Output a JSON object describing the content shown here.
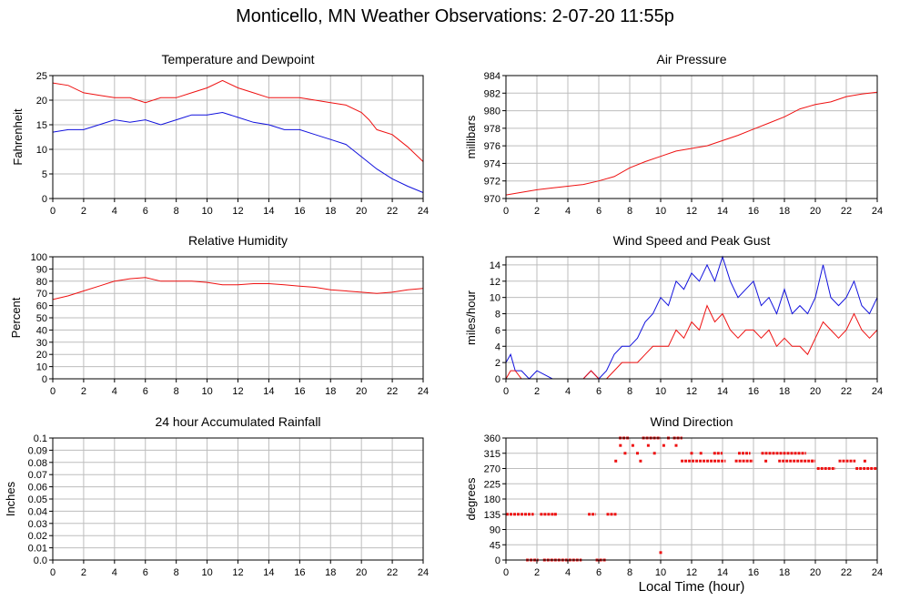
{
  "page": {
    "title": "Monticello, MN Weather Observations: 2-07-20 11:55p",
    "shared_xlabel": "Local Time (hour)"
  },
  "colors": {
    "red": "#ee1111",
    "blue": "#1111dd",
    "grid": "#bdbdbd",
    "axis": "#000000"
  },
  "chart_data": [
    {
      "id": "temp",
      "type": "line",
      "title": "Temperature and Dewpoint",
      "xlabel": "",
      "ylabel": "Fahrenheit",
      "xlim": [
        0,
        24
      ],
      "ylim": [
        0,
        25
      ],
      "xticks": [
        0,
        2,
        4,
        6,
        8,
        10,
        12,
        14,
        16,
        18,
        20,
        22,
        24
      ],
      "yticks": [
        0,
        5,
        10,
        15,
        20,
        25
      ],
      "ytick_labels": [
        "0",
        "5",
        "10",
        "15",
        "20",
        "25"
      ],
      "grid": true,
      "series": [
        {
          "color": "red",
          "x": [
            0,
            1,
            2,
            3,
            4,
            5,
            6,
            7,
            8,
            9,
            10,
            11,
            12,
            13,
            14,
            15,
            16,
            17,
            18,
            19,
            20,
            20.5,
            21,
            22,
            23,
            24
          ],
          "y": [
            23.5,
            23,
            21.5,
            21,
            20.5,
            20.5,
            19.5,
            20.5,
            20.5,
            21.5,
            22.5,
            24,
            22.5,
            21.5,
            20.5,
            20.5,
            20.5,
            20,
            19.5,
            19,
            17.5,
            16,
            14,
            13,
            10.5,
            7.5
          ]
        },
        {
          "color": "blue",
          "x": [
            0,
            1,
            2,
            3,
            4,
            5,
            6,
            7,
            8,
            9,
            10,
            11,
            12,
            13,
            14,
            15,
            16,
            17,
            18,
            19,
            20,
            21,
            22,
            23,
            24
          ],
          "y": [
            13.5,
            14,
            14,
            15,
            16,
            15.5,
            16,
            15,
            16,
            17,
            17,
            17.5,
            16.5,
            15.5,
            15,
            14,
            14,
            13,
            12,
            11,
            8.5,
            6,
            4,
            2.5,
            1.2
          ]
        }
      ]
    },
    {
      "id": "pressure",
      "type": "line",
      "title": "Air Pressure",
      "xlabel": "",
      "ylabel": "millibars",
      "xlim": [
        0,
        24
      ],
      "ylim": [
        970,
        984
      ],
      "xticks": [
        0,
        2,
        4,
        6,
        8,
        10,
        12,
        14,
        16,
        18,
        20,
        22,
        24
      ],
      "yticks": [
        970,
        972,
        974,
        976,
        978,
        980,
        982,
        984
      ],
      "ytick_labels": [
        "970",
        "972",
        "974",
        "976",
        "978",
        "980",
        "982",
        "984"
      ],
      "grid": true,
      "series": [
        {
          "color": "red",
          "x": [
            0,
            1,
            2,
            3,
            4,
            5,
            6,
            7,
            8,
            9,
            10,
            11,
            12,
            13,
            14,
            15,
            16,
            17,
            18,
            19,
            20,
            21,
            22,
            23,
            24
          ],
          "y": [
            970.4,
            970.7,
            971,
            971.2,
            971.4,
            971.6,
            972,
            972.5,
            973.5,
            974.2,
            974.8,
            975.4,
            975.7,
            976,
            976.6,
            977.2,
            977.9,
            978.6,
            979.3,
            980.2,
            980.7,
            981,
            981.6,
            981.9,
            982.1
          ]
        }
      ]
    },
    {
      "id": "rh",
      "type": "line",
      "title": "Relative Humidity",
      "xlabel": "",
      "ylabel": "Percent",
      "xlim": [
        0,
        24
      ],
      "ylim": [
        0,
        100
      ],
      "xticks": [
        0,
        2,
        4,
        6,
        8,
        10,
        12,
        14,
        16,
        18,
        20,
        22,
        24
      ],
      "yticks": [
        0,
        10,
        20,
        30,
        40,
        50,
        60,
        70,
        80,
        90,
        100
      ],
      "ytick_labels": [
        "0",
        "10",
        "20",
        "30",
        "40",
        "50",
        "60",
        "70",
        "80",
        "90",
        "100"
      ],
      "grid": true,
      "series": [
        {
          "color": "red",
          "x": [
            0,
            1,
            2,
            3,
            4,
            5,
            6,
            7,
            8,
            9,
            10,
            11,
            12,
            13,
            14,
            15,
            16,
            17,
            18,
            19,
            20,
            21,
            22,
            23,
            24
          ],
          "y": [
            65,
            68,
            72,
            76,
            80,
            82,
            83,
            80,
            80,
            80,
            79,
            77,
            77,
            78,
            78,
            77,
            76,
            75,
            73,
            72,
            71,
            70,
            71,
            73,
            74
          ]
        }
      ]
    },
    {
      "id": "wind",
      "type": "line",
      "title": "Wind Speed and Peak Gust",
      "xlabel": "",
      "ylabel": "miles/hour",
      "xlim": [
        0,
        24
      ],
      "ylim": [
        0,
        15
      ],
      "xticks": [
        0,
        2,
        4,
        6,
        8,
        10,
        12,
        14,
        16,
        18,
        20,
        22,
        24
      ],
      "yticks": [
        0,
        2,
        4,
        6,
        8,
        10,
        12,
        14
      ],
      "ytick_labels": [
        "0",
        "2",
        "4",
        "6",
        "8",
        "10",
        "12",
        "14"
      ],
      "grid": true,
      "series": [
        {
          "color": "blue",
          "x": [
            0,
            0.3,
            0.6,
            1,
            1.5,
            2,
            3,
            4,
            5,
            5.5,
            6,
            6.5,
            7,
            7.5,
            8,
            8.5,
            9,
            9.5,
            10,
            10.5,
            11,
            11.5,
            12,
            12.5,
            13,
            13.5,
            14,
            14.5,
            15,
            15.5,
            16,
            16.5,
            17,
            17.5,
            18,
            18.5,
            19,
            19.5,
            20,
            20.5,
            21,
            21.5,
            22,
            22.5,
            23,
            23.5,
            24
          ],
          "y": [
            2,
            3,
            1,
            1,
            0,
            1,
            0,
            0,
            0,
            1,
            0,
            1,
            3,
            4,
            4,
            5,
            7,
            8,
            10,
            9,
            12,
            11,
            13,
            12,
            14,
            12,
            15,
            12,
            10,
            11,
            12,
            9,
            10,
            8,
            11,
            8,
            9,
            8,
            10,
            14,
            10,
            9,
            10,
            12,
            9,
            8,
            10
          ]
        },
        {
          "color": "red",
          "x": [
            0,
            0.3,
            0.6,
            1,
            1.5,
            2,
            3,
            4,
            5,
            5.5,
            6,
            6.5,
            7,
            7.5,
            8,
            8.5,
            9,
            9.5,
            10,
            10.5,
            11,
            11.5,
            12,
            12.5,
            13,
            13.5,
            14,
            14.5,
            15,
            15.5,
            16,
            16.5,
            17,
            17.5,
            18,
            18.5,
            19,
            19.5,
            20,
            20.5,
            21,
            21.5,
            22,
            22.5,
            23,
            23.5,
            24
          ],
          "y": [
            0,
            1,
            1,
            0,
            0,
            0,
            0,
            0,
            0,
            1,
            0,
            0,
            1,
            2,
            2,
            2,
            3,
            4,
            4,
            4,
            6,
            5,
            7,
            6,
            9,
            7,
            8,
            6,
            5,
            6,
            6,
            5,
            6,
            4,
            5,
            4,
            4,
            3,
            5,
            7,
            6,
            5,
            6,
            8,
            6,
            5,
            6
          ]
        }
      ]
    },
    {
      "id": "rain",
      "type": "line",
      "title": "24 hour Accumulated Rainfall",
      "xlabel": "",
      "ylabel": "Inches",
      "xlim": [
        0,
        24
      ],
      "ylim": [
        0,
        0.1
      ],
      "xticks": [
        0,
        2,
        4,
        6,
        8,
        10,
        12,
        14,
        16,
        18,
        20,
        22,
        24
      ],
      "yticks": [
        0,
        0.01,
        0.02,
        0.03,
        0.04,
        0.05,
        0.06,
        0.07,
        0.08,
        0.09,
        0.1
      ],
      "ytick_labels": [
        "0.0",
        "0.01",
        "0.02",
        "0.03",
        "0.04",
        "0.05",
        "0.06",
        "0.07",
        "0.08",
        "0.09",
        "0.1"
      ],
      "grid": true,
      "series": [
        {
          "color": "red",
          "x": [
            0,
            24
          ],
          "y": [
            0,
            0
          ]
        }
      ]
    },
    {
      "id": "dir",
      "type": "scatter",
      "title": "Wind Direction",
      "xlabel": "Local Time (hour)",
      "ylabel": "degrees",
      "xlim": [
        0,
        24
      ],
      "ylim": [
        0,
        360
      ],
      "xticks": [
        0,
        2,
        4,
        6,
        8,
        10,
        12,
        14,
        16,
        18,
        20,
        22,
        24
      ],
      "yticks": [
        0,
        45,
        90,
        135,
        180,
        225,
        270,
        315,
        360
      ],
      "ytick_labels": [
        "0",
        "45",
        "90",
        "135",
        "180",
        "225",
        "270",
        "315",
        "360"
      ],
      "grid": true,
      "series": [
        {
          "color": "red",
          "segments": [
            {
              "x0": 0,
              "x1": 1.8,
              "y": 135
            },
            {
              "x0": 2.2,
              "x1": 3.2,
              "y": 135
            },
            {
              "x0": 5.3,
              "x1": 5.8,
              "y": 135
            },
            {
              "x0": 6.5,
              "x1": 7.2,
              "y": 135
            },
            {
              "x0": 1.3,
              "x1": 2.1,
              "y": 0
            },
            {
              "x0": 2.4,
              "x1": 4.9,
              "y": 0
            },
            {
              "x0": 5.8,
              "x1": 6.5,
              "y": 0
            },
            {
              "x0": 7.3,
              "x1": 8.0,
              "y": 360
            },
            {
              "x0": 8.8,
              "x1": 10.0,
              "y": 360
            },
            {
              "x0": 10.8,
              "x1": 11.4,
              "y": 360
            },
            {
              "x0": 11.3,
              "x1": 14.2,
              "y": 292
            },
            {
              "x0": 14.8,
              "x1": 16.0,
              "y": 292
            },
            {
              "x0": 16.5,
              "x1": 19.4,
              "y": 315
            },
            {
              "x0": 13.4,
              "x1": 14.0,
              "y": 315
            },
            {
              "x0": 15.0,
              "x1": 15.8,
              "y": 315
            },
            {
              "x0": 17.6,
              "x1": 20.0,
              "y": 292
            },
            {
              "x0": 20.1,
              "x1": 21.3,
              "y": 270
            },
            {
              "x0": 21.5,
              "x1": 22.6,
              "y": 292
            },
            {
              "x0": 22.6,
              "x1": 24.0,
              "y": 270
            }
          ],
          "points": [
            {
              "x": 3.2,
              "y": 135
            },
            {
              "x": 7.1,
              "y": 292
            },
            {
              "x": 7.4,
              "y": 338
            },
            {
              "x": 7.7,
              "y": 315
            },
            {
              "x": 8.2,
              "y": 338
            },
            {
              "x": 8.5,
              "y": 315
            },
            {
              "x": 8.7,
              "y": 292
            },
            {
              "x": 9.2,
              "y": 338
            },
            {
              "x": 9.6,
              "y": 315
            },
            {
              "x": 10.2,
              "y": 338
            },
            {
              "x": 10.5,
              "y": 360
            },
            {
              "x": 10.0,
              "y": 22
            },
            {
              "x": 11.0,
              "y": 338
            },
            {
              "x": 12.0,
              "y": 315
            },
            {
              "x": 12.6,
              "y": 315
            },
            {
              "x": 16.8,
              "y": 292
            },
            {
              "x": 19.8,
              "y": 292
            },
            {
              "x": 23.2,
              "y": 292
            }
          ]
        }
      ]
    }
  ]
}
